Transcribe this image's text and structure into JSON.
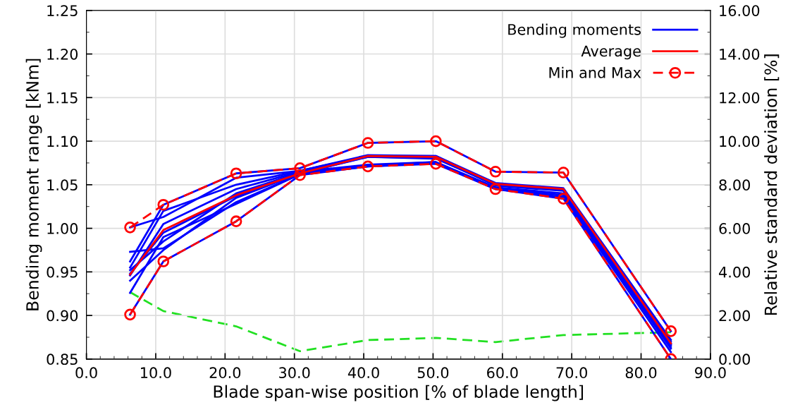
{
  "chart_data": {
    "type": "line",
    "xlabel": "Blade span-wise position [% of blade length]",
    "ylabel": "Bending moment range [kNm]",
    "y2label": "Relative standard deviation [%]",
    "x": [
      6.3,
      11.1,
      21.6,
      30.8,
      40.6,
      50.4,
      59.0,
      68.8,
      84.3
    ],
    "xlim": [
      0,
      90
    ],
    "xticks": [
      {
        "value": 0,
        "label": "0.0"
      },
      {
        "value": 10,
        "label": "10.0"
      },
      {
        "value": 20,
        "label": "20.0"
      },
      {
        "value": 30,
        "label": "30.0"
      },
      {
        "value": 40,
        "label": "40.0"
      },
      {
        "value": 50,
        "label": "50.0"
      },
      {
        "value": 60,
        "label": "60.0"
      },
      {
        "value": 70,
        "label": "70.0"
      },
      {
        "value": 80,
        "label": "80.0"
      },
      {
        "value": 90,
        "label": "90.0"
      }
    ],
    "ylim": [
      0.85,
      1.25
    ],
    "yticks": [
      0.85,
      {
        "value": 0.9,
        "label": "0.90"
      },
      0.95,
      {
        "value": 1.0,
        "label": "1.00"
      },
      1.05,
      {
        "value": 1.1,
        "label": "1.10"
      },
      1.15,
      {
        "value": 1.2,
        "label": "1.20"
      },
      1.25
    ],
    "y2lim": [
      0,
      16
    ],
    "y2ticks": [
      {
        "value": 0,
        "label": "0.00"
      },
      {
        "value": 2,
        "label": "2.00"
      },
      {
        "value": 4,
        "label": "4.00"
      },
      {
        "value": 6,
        "label": "6.00"
      },
      {
        "value": 8,
        "label": "8.00"
      },
      {
        "value": 10,
        "label": "10.00"
      },
      {
        "value": 12,
        "label": "12.00"
      },
      {
        "value": 14,
        "label": "14.00"
      },
      {
        "value": 16,
        "label": "16.00"
      }
    ],
    "grid": true,
    "legend": "top right",
    "series": [
      {
        "name": "Bending moments",
        "color": "#0000ff",
        "values": [
          1.001,
          1.013,
          1.058,
          1.066,
          1.084,
          1.083,
          1.052,
          1.046,
          0.872
        ]
      },
      {
        "color": "#0000ff",
        "values": [
          0.973,
          0.977,
          1.03,
          1.062,
          1.083,
          1.083,
          1.05,
          1.044,
          0.868
        ]
      },
      {
        "color": "#0000ff",
        "values": [
          0.962,
          1.027,
          1.063,
          1.069,
          1.098,
          1.1,
          1.065,
          1.064,
          0.882
        ]
      },
      {
        "color": "#0000ff",
        "values": [
          0.955,
          1.02,
          1.05,
          1.066,
          1.083,
          1.082,
          1.051,
          1.045,
          0.87
        ]
      },
      {
        "color": "#0000ff",
        "values": [
          0.952,
          0.985,
          1.04,
          1.064,
          1.082,
          1.081,
          1.049,
          1.043,
          0.866
        ]
      },
      {
        "color": "#0000ff",
        "values": [
          0.946,
          1.005,
          1.045,
          1.065,
          1.073,
          1.076,
          1.047,
          1.04,
          0.864
        ]
      },
      {
        "color": "#0000ff",
        "values": [
          0.94,
          0.975,
          1.035,
          1.063,
          1.072,
          1.076,
          1.046,
          1.038,
          0.862
        ]
      },
      {
        "color": "#0000ff",
        "values": [
          0.926,
          0.99,
          1.028,
          1.062,
          1.071,
          1.075,
          1.045,
          1.036,
          0.858
        ]
      },
      {
        "color": "#0000ff",
        "values": [
          0.901,
          0.962,
          1.008,
          1.061,
          1.071,
          1.074,
          1.045,
          1.034,
          0.85
        ]
      },
      {
        "color": "#0000ff",
        "values": [
          0.948,
          0.995,
          1.037,
          1.063,
          1.082,
          1.08,
          1.05,
          1.044,
          0.867
        ]
      },
      {
        "name": "Average",
        "color": "#ff0000",
        "values": [
          0.947,
          0.998,
          1.038,
          1.063,
          1.083,
          1.082,
          1.051,
          1.045,
          0.868
        ]
      },
      {
        "name": "Min and Max",
        "color": "#ff0000",
        "marker": "circle",
        "line_style": "dashed",
        "values": [
          1.001,
          1.027,
          1.063,
          1.069,
          1.098,
          1.1,
          1.065,
          1.064,
          0.882
        ]
      },
      {
        "color": "#ff0000",
        "marker": "circle",
        "line_style": "dashed",
        "values": [
          0.901,
          0.962,
          1.008,
          1.061,
          1.071,
          1.074,
          1.045,
          1.034,
          0.85
        ]
      },
      {
        "color": "#22e022",
        "line_style": "dashed",
        "axis": "y2",
        "values": [
          3.07,
          2.2,
          1.5,
          0.36,
          0.87,
          0.97,
          0.78,
          1.1,
          1.23
        ]
      }
    ]
  }
}
